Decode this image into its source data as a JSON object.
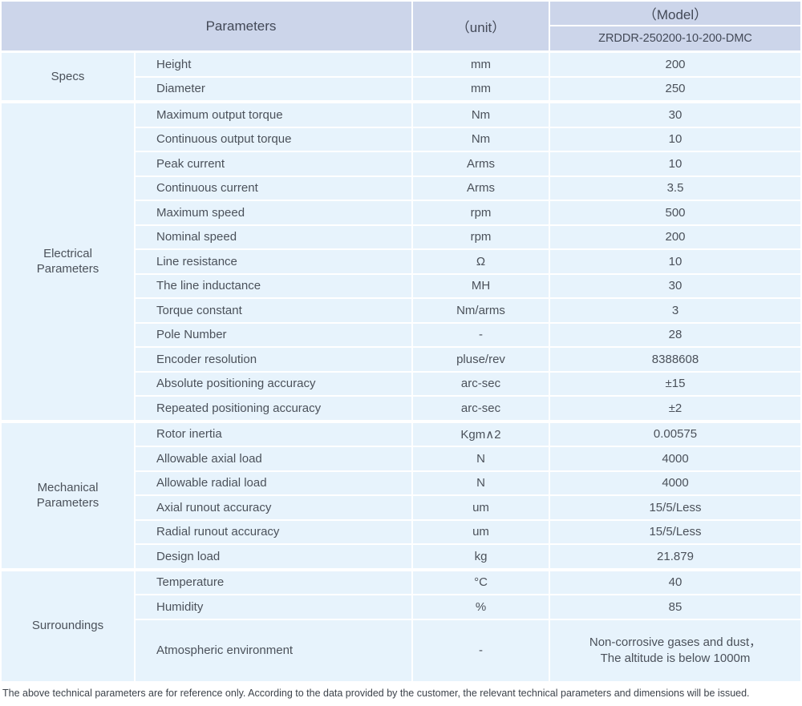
{
  "header": {
    "parameters_label": "Parameters",
    "unit_label": "（unit）",
    "model_label": "（Model）",
    "model_code": "ZRDDR-250200-10-200-DMC"
  },
  "colors": {
    "header_bg": "#ccd5ea",
    "row_bg": "#e7f3fc",
    "text": "#4b515a"
  },
  "sections": [
    {
      "group_lines": [
        "Specs"
      ],
      "rows": [
        {
          "name": "Height",
          "unit": "mm",
          "value": "200"
        },
        {
          "name": "Diameter",
          "unit": "mm",
          "value": "250"
        }
      ]
    },
    {
      "group_lines": [
        "Electrical",
        "Parameters"
      ],
      "rows": [
        {
          "name": "Maximum output torque",
          "unit": "Nm",
          "value": "30"
        },
        {
          "name": "Continuous output torque",
          "unit": "Nm",
          "value": "10"
        },
        {
          "name": "Peak current",
          "unit": "Arms",
          "value": "10"
        },
        {
          "name": "Continuous current",
          "unit": "Arms",
          "value": "3.5"
        },
        {
          "name": "Maximum speed",
          "unit": "rpm",
          "value": "500"
        },
        {
          "name": "Nominal speed",
          "unit": "rpm",
          "value": "200"
        },
        {
          "name": "Line resistance",
          "unit": "Ω",
          "value": "10"
        },
        {
          "name": "The line inductance",
          "unit": "MH",
          "value": "30"
        },
        {
          "name": "Torque constant",
          "unit": "Nm/arms",
          "value": "3"
        },
        {
          "name": "Pole Number",
          "unit": "-",
          "value": "28"
        },
        {
          "name": "Encoder resolution",
          "unit": "pluse/rev",
          "value": "8388608"
        },
        {
          "name": "Absolute positioning accuracy",
          "unit": "arc-sec",
          "value": "±15"
        },
        {
          "name": "Repeated positioning accuracy",
          "unit": "arc-sec",
          "value": "±2"
        }
      ]
    },
    {
      "group_lines": [
        "Mechanical",
        "Parameters"
      ],
      "rows": [
        {
          "name": "Rotor inertia",
          "unit": "Kgm∧2",
          "value": "0.00575"
        },
        {
          "name": "Allowable axial load",
          "unit": "N",
          "value": "4000"
        },
        {
          "name": "Allowable radial load",
          "unit": "N",
          "value": "4000"
        },
        {
          "name": "Axial runout accuracy",
          "unit": "um",
          "value": "15/5/Less"
        },
        {
          "name": "Radial runout accuracy",
          "unit": "um",
          "value": "15/5/Less"
        },
        {
          "name": "Design load",
          "unit": "kg",
          "value": "21.879"
        }
      ]
    },
    {
      "group_lines": [
        "Surroundings"
      ],
      "rows": [
        {
          "name": "Temperature",
          "unit": "°C",
          "value": "40"
        },
        {
          "name": "Humidity",
          "unit": "%",
          "value": "85"
        },
        {
          "name": "Atmospheric environment",
          "unit": "-",
          "value": "Non-corrosive gases and dust，",
          "value2": "The altitude is below 1000m"
        }
      ]
    }
  ],
  "footer": {
    "note": "The above technical parameters are for reference only. According to the data provided by the customer, the relevant technical parameters and dimensions will be issued."
  }
}
